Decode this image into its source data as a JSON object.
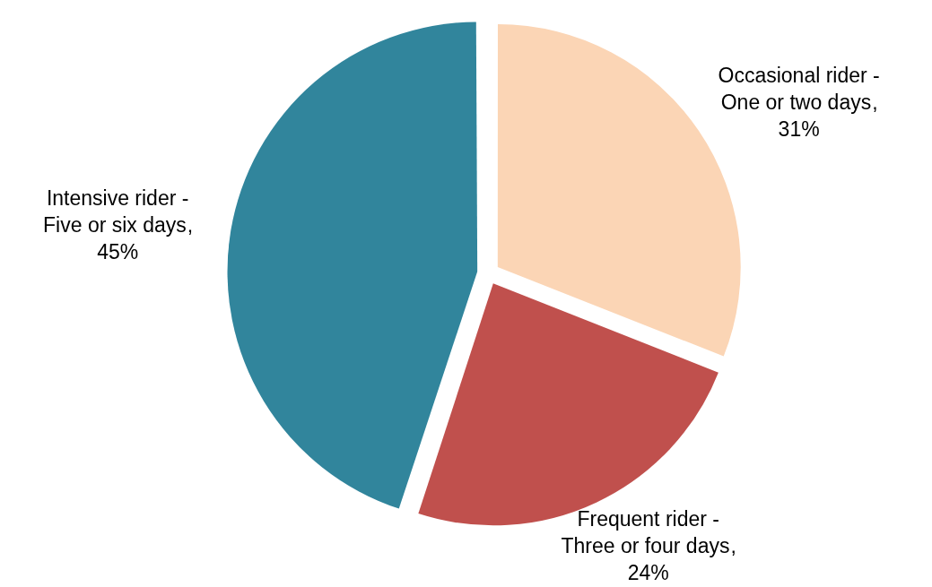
{
  "chart_data": {
    "type": "pie",
    "categories": [
      "Occasional rider - One or two days",
      "Frequent rider - Three or four days",
      "Intensive rider - Five or six days"
    ],
    "values": [
      31,
      24,
      45
    ],
    "value_labels": [
      ", 31%",
      ", 24%",
      ", 45%"
    ],
    "colors": [
      "#fbd5b5",
      "#c0504d",
      "#31859c"
    ],
    "legend": false
  }
}
